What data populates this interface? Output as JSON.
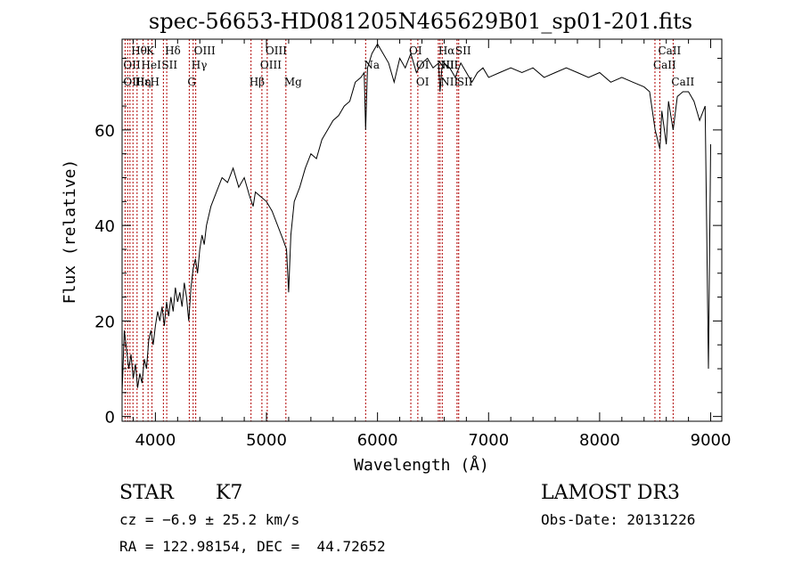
{
  "chart_data": {
    "type": "line",
    "title": "spec-56653-HD081205N465629B01_sp01-201.fits",
    "xlabel": "Wavelength (Å)",
    "ylabel": "Flux (relative)",
    "xlim": [
      3700,
      9100
    ],
    "ylim": [
      -1,
      79
    ],
    "grid": false,
    "x_ticks": [
      4000,
      5000,
      6000,
      7000,
      8000,
      9000
    ],
    "y_ticks": [
      0,
      20,
      40,
      60
    ],
    "x_tick_labels": [
      "4000",
      "5000",
      "6000",
      "7000",
      "8000",
      "9000"
    ],
    "y_tick_labels": [
      "0",
      "20",
      "40",
      "60"
    ],
    "series": [
      {
        "x": [
          3700,
          3720,
          3740,
          3760,
          3780,
          3800,
          3820,
          3840,
          3860,
          3880,
          3900,
          3920,
          3940,
          3960,
          3980,
          4000,
          4020,
          4040,
          4060,
          4080,
          4100,
          4120,
          4140,
          4160,
          4180,
          4200,
          4220,
          4240,
          4260,
          4280,
          4300,
          4320,
          4340,
          4360,
          4380,
          4400,
          4420,
          4440,
          4460,
          4480,
          4500,
          4550,
          4600,
          4650,
          4700,
          4750,
          4800,
          4850,
          4880,
          4900,
          4950,
          5000,
          5050,
          5100,
          5150,
          5180,
          5200,
          5220,
          5250,
          5300,
          5350,
          5400,
          5450,
          5500,
          5550,
          5600,
          5650,
          5700,
          5750,
          5800,
          5850,
          5880,
          5893,
          5910,
          5950,
          6000,
          6050,
          6100,
          6150,
          6200,
          6250,
          6300,
          6350,
          6400,
          6450,
          6500,
          6550,
          6563,
          6580,
          6600,
          6650,
          6700,
          6750,
          6800,
          6850,
          6900,
          6950,
          7000,
          7100,
          7200,
          7300,
          7400,
          7500,
          7600,
          7700,
          7800,
          7900,
          8000,
          8100,
          8200,
          8300,
          8400,
          8450,
          8500,
          8542,
          8560,
          8600,
          8620,
          8662,
          8700,
          8750,
          8800,
          8850,
          8900,
          8950,
          8980,
          9000
        ],
        "y": [
          5,
          18,
          14,
          10,
          13,
          8,
          11,
          6,
          9,
          7,
          12,
          10,
          16,
          18,
          15,
          19,
          22,
          20,
          23,
          19,
          24,
          21,
          25,
          22,
          27,
          24,
          26,
          23,
          28,
          25,
          20,
          27,
          31,
          33,
          30,
          35,
          38,
          36,
          40,
          42,
          44,
          47,
          50,
          49,
          52,
          48,
          50,
          46,
          44,
          47,
          46,
          45,
          43,
          40,
          37,
          35,
          26,
          38,
          45,
          48,
          52,
          55,
          54,
          58,
          60,
          62,
          63,
          65,
          66,
          70,
          71,
          72,
          60,
          73,
          76,
          78,
          76,
          74,
          70,
          75,
          73,
          76,
          72,
          74,
          75,
          73,
          74,
          68,
          73,
          74,
          73,
          71,
          74,
          72,
          70,
          72,
          73,
          71,
          72,
          73,
          72,
          73,
          71,
          72,
          73,
          72,
          71,
          72,
          70,
          71,
          70,
          69,
          68,
          60,
          56,
          64,
          57,
          66,
          60,
          67,
          68,
          68,
          66,
          62,
          65,
          10,
          57
        ]
      }
    ],
    "line_labels": [
      {
        "text": "Hθ",
        "x": 3798,
        "row": 1
      },
      {
        "text": "K",
        "x": 3934,
        "row": 1
      },
      {
        "text": "Hδ",
        "x": 4102,
        "row": 1
      },
      {
        "text": "OIII",
        "x": 4363,
        "row": 1
      },
      {
        "text": "OIII",
        "x": 5007,
        "row": 1
      },
      {
        "text": "OI",
        "x": 6300,
        "row": 1
      },
      {
        "text": "Hα",
        "x": 6563,
        "row": 1
      },
      {
        "text": "SII",
        "x": 6716,
        "row": 1
      },
      {
        "text": "CaII",
        "x": 8542,
        "row": 1
      },
      {
        "text": "OII",
        "x": 3727,
        "row": 2
      },
      {
        "text": "HeI",
        "x": 3889,
        "row": 2
      },
      {
        "text": "SII",
        "x": 4072,
        "row": 2
      },
      {
        "text": "Hγ",
        "x": 4340,
        "row": 2
      },
      {
        "text": "OIII",
        "x": 4959,
        "row": 2
      },
      {
        "text": "Na",
        "x": 5893,
        "row": 2
      },
      {
        "text": "OI",
        "x": 6363,
        "row": 2
      },
      {
        "text": "NII",
        "x": 6548,
        "row": 2
      },
      {
        "text": "NII",
        "x": 6583,
        "row": 2
      },
      {
        "text": "CaII",
        "x": 8498,
        "row": 2
      },
      {
        "text": "OII",
        "x": 3727,
        "row": 3
      },
      {
        "text": "Hε",
        "x": 3835,
        "row": 3
      },
      {
        "text": "Hη",
        "x": 3835,
        "row": 3
      },
      {
        "text": "H",
        "x": 3969,
        "row": 3
      },
      {
        "text": "G",
        "x": 4305,
        "row": 3
      },
      {
        "text": "Hβ",
        "x": 4861,
        "row": 3
      },
      {
        "text": "Mg",
        "x": 5175,
        "row": 3
      },
      {
        "text": "OI",
        "x": 6363,
        "row": 3
      },
      {
        "text": "NII",
        "x": 6583,
        "row": 3
      },
      {
        "text": "SII",
        "x": 6731,
        "row": 3
      },
      {
        "text": "CaII",
        "x": 8662,
        "row": 3
      }
    ],
    "line_markers": [
      3727,
      3750,
      3771,
      3798,
      3835,
      3889,
      3934,
      3969,
      4072,
      4102,
      4305,
      4340,
      4363,
      4861,
      4959,
      5007,
      5175,
      5893,
      6300,
      6363,
      6548,
      6563,
      6583,
      6716,
      6731,
      8498,
      8542,
      8662
    ]
  },
  "info": {
    "object_class": "STAR",
    "subclass": "K7",
    "survey": "LAMOST DR3",
    "cz": "cz = −6.9 ± 25.2 km/s",
    "obs_date": "Obs-Date: 20131226",
    "coords": "RA = 122.98154, DEC =  44.72652"
  },
  "colors": {
    "line": "#000000",
    "marker": "#b00000",
    "axis": "#000000",
    "background": "#ffffff"
  }
}
